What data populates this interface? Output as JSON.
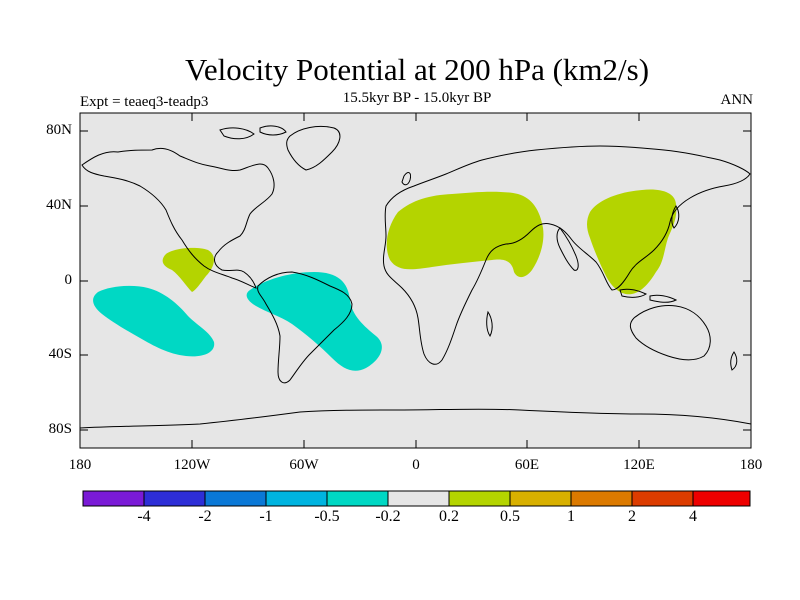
{
  "title": "Velocity Potential at 200 hPa (km2/s)",
  "subtitle": "15.5kyr BP - 15.0kyr BP",
  "experiment": "Expt = teaeq3-teadp3",
  "season": "ANN",
  "y_axis_labels": [
    "80N",
    "40N",
    "0",
    "40S",
    "80S"
  ],
  "x_axis_labels": [
    "180",
    "120W",
    "60W",
    "0",
    "60E",
    "120E",
    "180"
  ],
  "colorbar": {
    "colors": [
      "#7a1ad6",
      "#2d2ed6",
      "#0a78d6",
      "#00b4e0",
      "#00d8c4",
      "#e6e6e6",
      "#b4d400",
      "#d8b000",
      "#dc7a00",
      "#dc3c00",
      "#ee0000"
    ],
    "labels": [
      "-4",
      "-2",
      "-1",
      "-0.5",
      "-0.2",
      "0.2",
      "0.5",
      "1",
      "2",
      "4"
    ]
  },
  "colors": {
    "ocean": "#e6e6e6",
    "positive_fill": "#b4d400",
    "negative_fill": "#00d8c4"
  },
  "map_features": {
    "land_outline": "continents",
    "shaded_regions": [
      "positive-north-africa-middle-east",
      "positive-east-asia",
      "positive-east-pacific",
      "negative-south-america-atlantic",
      "negative-south-pacific"
    ]
  }
}
